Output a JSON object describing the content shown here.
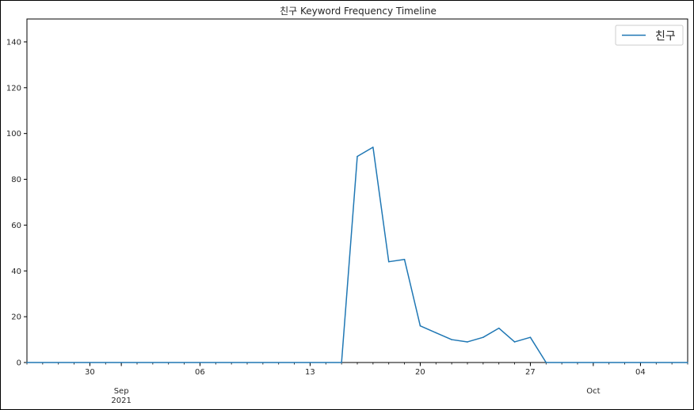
{
  "chart_data": {
    "type": "line",
    "title": "친구 Keyword Frequency Timeline",
    "xlabel": "",
    "ylabel": "",
    "x_start": "2021-08-26",
    "x_end": "2021-10-07",
    "ylim": [
      0,
      150
    ],
    "yticks": [
      0,
      20,
      40,
      60,
      80,
      100,
      120,
      140
    ],
    "grid": false,
    "legend_position": "top-right",
    "line_color": "#1f77b4",
    "major_ticks": [
      {
        "date": "2021-08-30",
        "label": "30"
      },
      {
        "date": "2021-09-06",
        "label": "06"
      },
      {
        "date": "2021-09-13",
        "label": "13"
      },
      {
        "date": "2021-09-20",
        "label": "20"
      },
      {
        "date": "2021-09-27",
        "label": "27"
      },
      {
        "date": "2021-10-04",
        "label": "04"
      }
    ],
    "month_labels": [
      {
        "date": "2021-09-01",
        "label": "Sep",
        "year": "2021"
      },
      {
        "date": "2021-10-01",
        "label": "Oct",
        "year": ""
      }
    ],
    "series": [
      {
        "name": "친구",
        "points": [
          {
            "x": "2021-08-26",
            "y": 0
          },
          {
            "x": "2021-09-15",
            "y": 0
          },
          {
            "x": "2021-09-16",
            "y": 90
          },
          {
            "x": "2021-09-17",
            "y": 94
          },
          {
            "x": "2021-09-18",
            "y": 44
          },
          {
            "x": "2021-09-19",
            "y": 45
          },
          {
            "x": "2021-09-20",
            "y": 16
          },
          {
            "x": "2021-09-21",
            "y": 13
          },
          {
            "x": "2021-09-22",
            "y": 10
          },
          {
            "x": "2021-09-23",
            "y": 9
          },
          {
            "x": "2021-09-24",
            "y": 11
          },
          {
            "x": "2021-09-25",
            "y": 15
          },
          {
            "x": "2021-09-26",
            "y": 9
          },
          {
            "x": "2021-09-27",
            "y": 11
          },
          {
            "x": "2021-09-28",
            "y": 0
          },
          {
            "x": "2021-10-07",
            "y": 0
          }
        ]
      }
    ]
  }
}
